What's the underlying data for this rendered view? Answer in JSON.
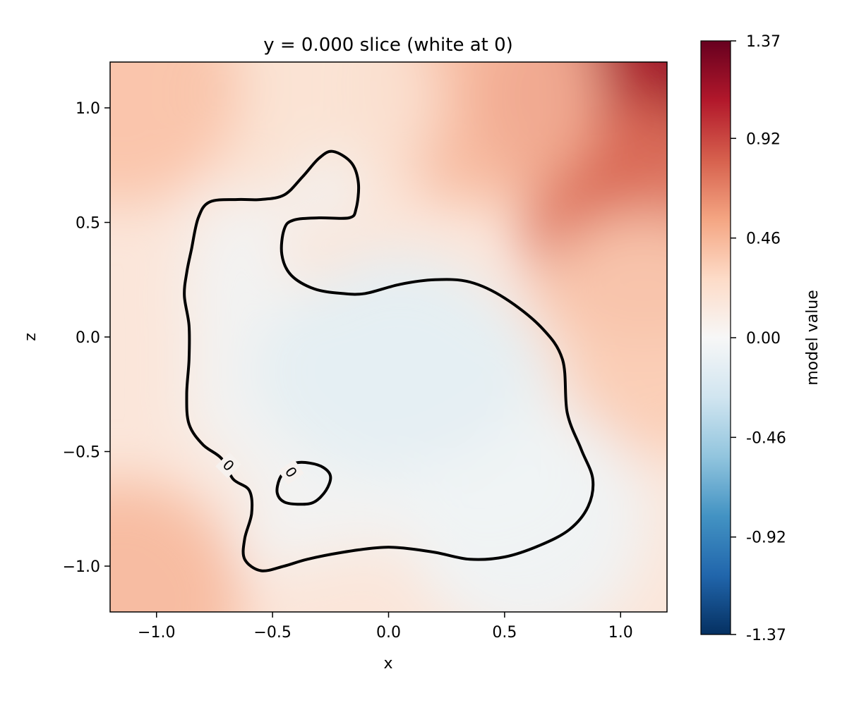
{
  "chart_data": {
    "type": "heatmap",
    "title": "y = 0.000 slice (white at 0)",
    "xlabel": "x",
    "ylabel": "z",
    "xlim": [
      -1.2,
      1.2
    ],
    "ylim": [
      -1.2,
      1.2
    ],
    "x_ticks": [
      -1.0,
      -0.5,
      0.0,
      0.5,
      1.0
    ],
    "x_tick_labels": [
      "−1.0",
      "−0.5",
      "0.0",
      "0.5",
      "1.0"
    ],
    "y_ticks": [
      -1.0,
      -0.5,
      0.0,
      0.5,
      1.0
    ],
    "y_tick_labels": [
      "−1.0",
      "−0.5",
      "0.0",
      "0.5",
      "1.0"
    ],
    "grid": false,
    "colormap": "RdBu_r",
    "colorbar": {
      "label": "model value",
      "min": -1.37,
      "max": 1.37,
      "ticks": [
        1.37,
        0.92,
        0.46,
        0.0,
        -0.46,
        -0.92,
        -1.37
      ],
      "tick_labels": [
        "1.37",
        "0.92",
        "0.46",
        "0.00",
        "-0.46",
        "-0.92",
        "-1.37"
      ]
    },
    "field_samples": [
      {
        "x": 1.17,
        "z": 1.17,
        "value": 1.37
      },
      {
        "x": 0.85,
        "z": 1.05,
        "value": 1.1
      },
      {
        "x": 1.1,
        "z": 0.5,
        "value": 0.75
      },
      {
        "x": 1.1,
        "z": 0.0,
        "value": 0.35
      },
      {
        "x": 0.4,
        "z": 1.1,
        "value": 0.45
      },
      {
        "x": -0.3,
        "z": 1.05,
        "value": 0.2
      },
      {
        "x": -1.15,
        "z": 1.1,
        "value": 0.4
      },
      {
        "x": -1.15,
        "z": -1.15,
        "value": 0.45
      },
      {
        "x": 0.05,
        "z": -0.15,
        "value": -0.12
      },
      {
        "x": 0.6,
        "z": -0.8,
        "value": -0.05
      }
    ],
    "contours": [
      {
        "level": 0,
        "label": "0",
        "closed": true,
        "points": [
          [
            -0.55,
            -1.02
          ],
          [
            -0.45,
            -1.0
          ],
          [
            -0.35,
            -0.97
          ],
          [
            -0.2,
            -0.94
          ],
          [
            -0.05,
            -0.92
          ],
          [
            0.05,
            -0.92
          ],
          [
            0.2,
            -0.94
          ],
          [
            0.35,
            -0.97
          ],
          [
            0.5,
            -0.96
          ],
          [
            0.65,
            -0.91
          ],
          [
            0.78,
            -0.84
          ],
          [
            0.86,
            -0.74
          ],
          [
            0.88,
            -0.62
          ],
          [
            0.83,
            -0.49
          ],
          [
            0.77,
            -0.33
          ],
          [
            0.75,
            -0.1
          ],
          [
            0.66,
            0.04
          ],
          [
            0.5,
            0.17
          ],
          [
            0.35,
            0.24
          ],
          [
            0.2,
            0.25
          ],
          [
            0.05,
            0.23
          ],
          [
            -0.1,
            0.19
          ],
          [
            -0.2,
            0.19
          ],
          [
            -0.32,
            0.21
          ],
          [
            -0.42,
            0.27
          ],
          [
            -0.46,
            0.36
          ],
          [
            -0.45,
            0.47
          ],
          [
            -0.41,
            0.51
          ],
          [
            -0.3,
            0.52
          ],
          [
            -0.17,
            0.52
          ],
          [
            -0.14,
            0.56
          ],
          [
            -0.13,
            0.67
          ],
          [
            -0.16,
            0.76
          ],
          [
            -0.24,
            0.81
          ],
          [
            -0.3,
            0.78
          ],
          [
            -0.37,
            0.7
          ],
          [
            -0.45,
            0.62
          ],
          [
            -0.55,
            0.6
          ],
          [
            -0.65,
            0.6
          ],
          [
            -0.77,
            0.59
          ],
          [
            -0.82,
            0.52
          ],
          [
            -0.85,
            0.38
          ],
          [
            -0.87,
            0.28
          ],
          [
            -0.88,
            0.18
          ],
          [
            -0.86,
            0.05
          ],
          [
            -0.86,
            -0.1
          ],
          [
            -0.87,
            -0.25
          ],
          [
            -0.86,
            -0.38
          ],
          [
            -0.8,
            -0.47
          ],
          [
            -0.72,
            -0.53
          ],
          [
            -0.67,
            -0.62
          ],
          [
            -0.6,
            -0.67
          ],
          [
            -0.59,
            -0.77
          ],
          [
            -0.62,
            -0.88
          ],
          [
            -0.62,
            -0.97
          ]
        ]
      },
      {
        "level": 0,
        "label": "0",
        "closed": true,
        "points": [
          [
            -0.4,
            -0.55
          ],
          [
            -0.34,
            -0.55
          ],
          [
            -0.28,
            -0.57
          ],
          [
            -0.25,
            -0.61
          ],
          [
            -0.27,
            -0.67
          ],
          [
            -0.32,
            -0.72
          ],
          [
            -0.38,
            -0.73
          ],
          [
            -0.45,
            -0.72
          ],
          [
            -0.48,
            -0.68
          ],
          [
            -0.47,
            -0.62
          ],
          [
            -0.44,
            -0.58
          ]
        ]
      }
    ],
    "contour_labels": [
      {
        "x": -0.69,
        "z": -0.56,
        "text": "0",
        "angle": 45
      },
      {
        "x": -0.42,
        "z": -0.59,
        "text": "0",
        "angle": 55
      }
    ]
  }
}
